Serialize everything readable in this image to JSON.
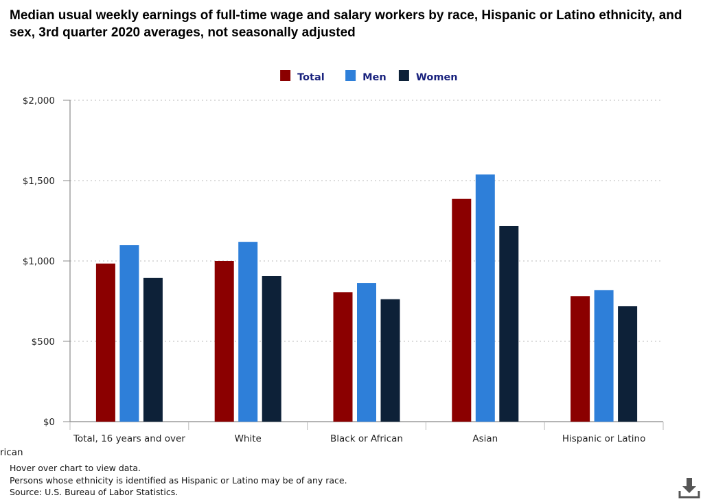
{
  "title": "Median usual weekly earnings of full-time wage and salary workers by race, Hispanic or Latino ethnicity, and sex, 3rd quarter 2020 averages, not seasonally adjusted",
  "clipped_text": "rican",
  "footnotes": [
    "Hover over chart to view data.",
    "Persons whose ethnicity is identified as Hispanic or Latino may be of any race.",
    "Source: U.S. Bureau of Labor Statistics."
  ],
  "download_icon": "download-icon",
  "colors": {
    "Total": "#8b0000",
    "Men": "#2e7fd9",
    "Women": "#0d2138",
    "legend_text": "#1a237e"
  },
  "chart_data": {
    "type": "bar",
    "categories": [
      "Total, 16 years and over",
      "White",
      "Black or African",
      "Asian",
      "Hispanic or Latino"
    ],
    "series": [
      {
        "name": "Total",
        "values": [
          984,
          1000,
          806,
          1386,
          781
        ]
      },
      {
        "name": "Men",
        "values": [
          1098,
          1119,
          863,
          1538,
          819
        ]
      },
      {
        "name": "Women",
        "values": [
          894,
          906,
          762,
          1218,
          718
        ]
      }
    ],
    "ylim": [
      0,
      2000
    ],
    "yticks": [
      0,
      500,
      1000,
      1500,
      2000
    ],
    "ytick_labels": [
      "$0",
      "$500",
      "$1,000",
      "$1,500",
      "$2,000"
    ],
    "grid": true,
    "legend_position": "top-center"
  }
}
